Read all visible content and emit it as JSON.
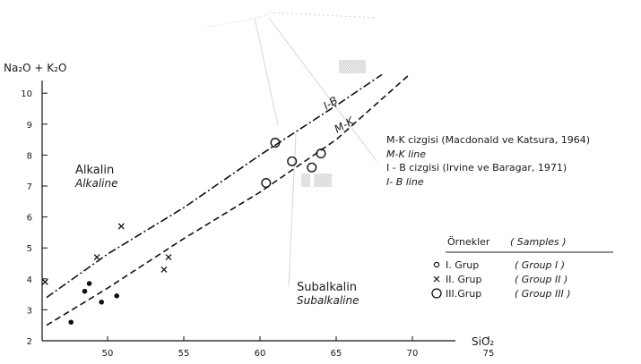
{
  "chart_data": {
    "type": "scatter",
    "title": "",
    "xlabel": "SiO₂",
    "ylabel": "Na₂O + K₂O",
    "xlim": [
      45,
      80
    ],
    "ylim": [
      2,
      10.5
    ],
    "x_ticks": [
      "50",
      "55",
      "60",
      "65",
      "70",
      "75"
    ],
    "y_ticks": [
      "2",
      "3",
      "4",
      "5",
      "6",
      "7",
      "8",
      "9",
      "10"
    ],
    "grid": false,
    "regions": {
      "alkaline_tr": "Alkalin",
      "alkaline_en": "Alkaline",
      "subalkaline_tr": "Subalkalin",
      "subalkaline_en": "Subalkaline"
    },
    "boundary_lines": [
      {
        "label": "M-K",
        "x": [
          46.0,
          50.0,
          55.0,
          60.0,
          65.0,
          69.8
        ],
        "y": [
          2.5,
          3.7,
          5.3,
          6.8,
          8.5,
          10.6
        ]
      },
      {
        "label": "I-B",
        "x": [
          46.0,
          50.0,
          55.0,
          60.0,
          65.0,
          68.0
        ],
        "y": [
          3.4,
          4.8,
          6.3,
          8.0,
          9.6,
          10.6
        ]
      }
    ],
    "line_notes": {
      "mk_tr": "M-K cizgisi (Macdonald ve Katsura, 1964)",
      "mk_en": "M-K line",
      "ib_tr": "I - B cizgisi (Irvine ve Baragar, 1971)",
      "ib_en": "I- B line"
    },
    "legend": {
      "title_tr": "Örnekler",
      "title_en": "( Samples )",
      "position": "bottom-right",
      "entries": [
        {
          "marker": "small-circle",
          "label_tr": "I. Grup",
          "label_en": "( Group I )"
        },
        {
          "marker": "x",
          "label_tr": "II. Grup",
          "label_en": "( Group II )"
        },
        {
          "marker": "large-circle",
          "label_tr": "III.Grup",
          "label_en": "( Group III )"
        }
      ]
    },
    "series": [
      {
        "name": "I. Grup",
        "marker": "small-circle",
        "x": [
          47.6,
          48.5,
          48.8,
          49.6,
          50.6
        ],
        "y": [
          2.6,
          3.6,
          3.85,
          3.25,
          3.45
        ]
      },
      {
        "name": "II. Grup",
        "marker": "x",
        "x": [
          45.9,
          49.3,
          50.9,
          53.7,
          54.0
        ],
        "y": [
          3.9,
          4.7,
          5.7,
          4.3,
          4.7
        ]
      },
      {
        "name": "III.Grup",
        "marker": "large-circle",
        "x": [
          60.4,
          61.0,
          62.1,
          63.4,
          64.0
        ],
        "y": [
          7.1,
          8.4,
          7.8,
          7.6,
          8.05
        ]
      }
    ]
  }
}
